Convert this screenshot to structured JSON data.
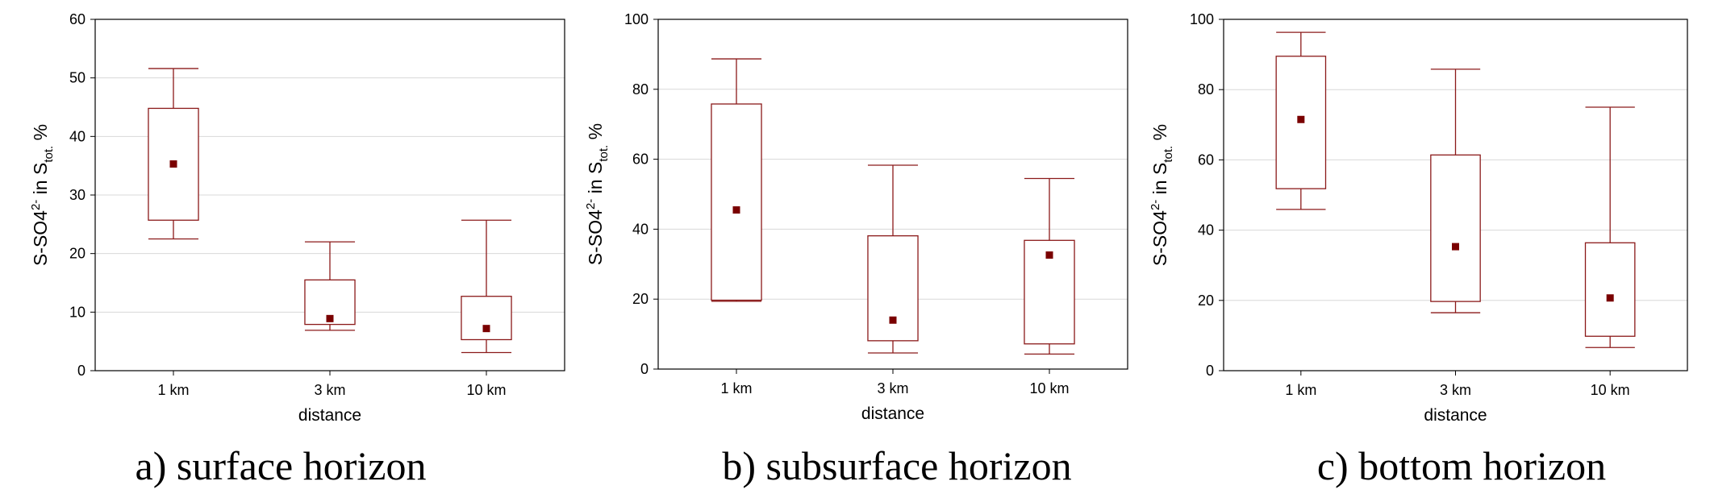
{
  "y_label": {
    "prefix": "S-SO4",
    "sup": "2-",
    "mid": " in S",
    "sub": "tot.",
    "suffix": " %"
  },
  "colors": {
    "box": "#8b1a1a",
    "median": "#7a0000",
    "frame": "#000000",
    "grid": "#d8d8d8"
  },
  "chart_data": [
    {
      "type": "box",
      "caption": "a) surface horizon",
      "xlabel": "distance",
      "categories": [
        "1 km",
        "3 km",
        "10 km"
      ],
      "ylim": [
        0,
        60
      ],
      "yticks": [
        0,
        10,
        20,
        30,
        40,
        50,
        60
      ],
      "grid": true,
      "boxes": [
        {
          "min": 22.5,
          "q1": 25.7,
          "median": 35.3,
          "q3": 44.8,
          "max": 51.6
        },
        {
          "min": 6.9,
          "q1": 7.9,
          "median": 8.9,
          "q3": 15.5,
          "max": 22.0
        },
        {
          "min": 3.1,
          "q1": 5.3,
          "median": 7.2,
          "q3": 12.7,
          "max": 25.7
        }
      ]
    },
    {
      "type": "box",
      "caption": "b) subsurface horizon",
      "xlabel": "distance",
      "categories": [
        "1 km",
        "3 km",
        "10 km"
      ],
      "ylim": [
        0,
        100
      ],
      "yticks": [
        0,
        20,
        40,
        60,
        80,
        100
      ],
      "grid": true,
      "boxes": [
        {
          "min": 19.4,
          "q1": 19.7,
          "median": 45.5,
          "q3": 75.8,
          "max": 88.7
        },
        {
          "min": 4.6,
          "q1": 8.1,
          "median": 14.0,
          "q3": 38.1,
          "max": 58.3
        },
        {
          "min": 4.3,
          "q1": 7.2,
          "median": 32.6,
          "q3": 36.8,
          "max": 54.5
        }
      ]
    },
    {
      "type": "box",
      "caption": "c) bottom horizon",
      "xlabel": "distance",
      "categories": [
        "1 km",
        "3 km",
        "10 km"
      ],
      "ylim": [
        0,
        100
      ],
      "yticks": [
        0,
        20,
        40,
        60,
        80,
        100
      ],
      "grid": true,
      "boxes": [
        {
          "min": 45.9,
          "q1": 51.8,
          "median": 71.5,
          "q3": 89.5,
          "max": 96.3
        },
        {
          "min": 16.5,
          "q1": 19.7,
          "median": 35.3,
          "q3": 61.4,
          "max": 85.8
        },
        {
          "min": 6.6,
          "q1": 9.8,
          "median": 20.7,
          "q3": 36.4,
          "max": 75.0
        }
      ]
    }
  ]
}
